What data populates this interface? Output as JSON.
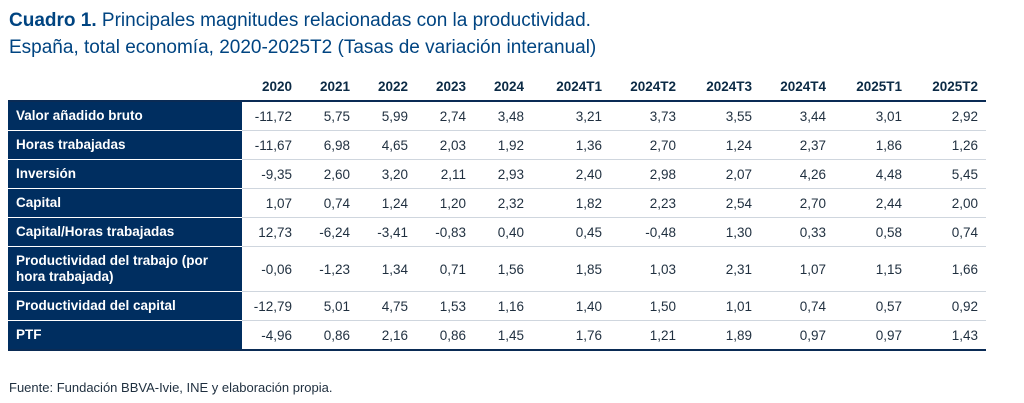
{
  "title": {
    "bold": "Cuadro 1.",
    "line1_rest": " Principales magnitudes relacionadas con la productividad.",
    "line2": "España, total economía, 2020-2025T2 (Tasas de variación interanual)"
  },
  "table": {
    "columns": [
      "2020",
      "2021",
      "2022",
      "2023",
      "2024",
      "2024T1",
      "2024T2",
      "2024T3",
      "2024T4",
      "2025T1",
      "2025T2"
    ],
    "rows": [
      {
        "label": "Valor añadido bruto",
        "values": [
          "-11,72",
          "5,75",
          "5,99",
          "2,74",
          "3,48",
          "3,21",
          "3,73",
          "3,55",
          "3,44",
          "3,01",
          "2,92"
        ]
      },
      {
        "label": "Horas trabajadas",
        "values": [
          "-11,67",
          "6,98",
          "4,65",
          "2,03",
          "1,92",
          "1,36",
          "2,70",
          "1,24",
          "2,37",
          "1,86",
          "1,26"
        ]
      },
      {
        "label": "Inversión",
        "values": [
          "-9,35",
          "2,60",
          "3,20",
          "2,11",
          "2,93",
          "2,40",
          "2,98",
          "2,07",
          "4,26",
          "4,48",
          "5,45"
        ]
      },
      {
        "label": "Capital",
        "values": [
          "1,07",
          "0,74",
          "1,24",
          "1,20",
          "2,32",
          "1,82",
          "2,23",
          "2,54",
          "2,70",
          "2,44",
          "2,00"
        ]
      },
      {
        "label": "Capital/Horas trabajadas",
        "values": [
          "12,73",
          "-6,24",
          "-3,41",
          "-0,83",
          "0,40",
          "0,45",
          "-0,48",
          "1,30",
          "0,33",
          "0,58",
          "0,74"
        ]
      },
      {
        "label": "Productividad del trabajo (por hora trabajada)",
        "values": [
          "-0,06",
          "-1,23",
          "1,34",
          "0,71",
          "1,56",
          "1,85",
          "1,03",
          "2,31",
          "1,07",
          "1,15",
          "1,66"
        ]
      },
      {
        "label": "Productividad del capital",
        "values": [
          "-12,79",
          "5,01",
          "4,75",
          "1,53",
          "1,16",
          "1,40",
          "1,50",
          "1,01",
          "0,74",
          "0,57",
          "0,92"
        ]
      },
      {
        "label": "PTF",
        "values": [
          "-4,96",
          "0,86",
          "2,16",
          "0,86",
          "1,45",
          "1,76",
          "1,21",
          "1,89",
          "0,97",
          "0,97",
          "1,43"
        ]
      }
    ]
  },
  "source": "Fuente: Fundación BBVA-Ivie, INE y elaboración propia.",
  "colors": {
    "title": "#004481",
    "row_label_bg": "#002e60",
    "rule": "#0a2b55"
  }
}
